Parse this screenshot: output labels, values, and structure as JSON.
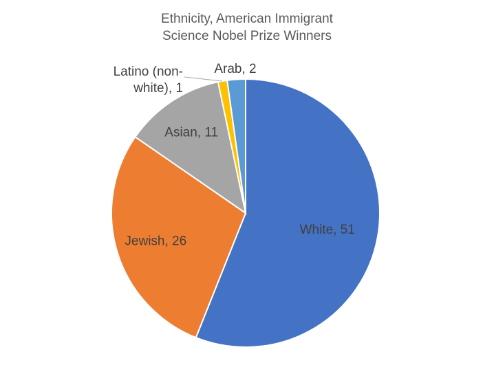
{
  "chart_data": {
    "type": "pie",
    "title": [
      "Ethnicity, American Immigrant",
      "Science Nobel Prize Winners"
    ],
    "slices": [
      {
        "label": "White, 51",
        "category": "White",
        "value": 51,
        "color": "#4472C4"
      },
      {
        "label": "Jewish, 26",
        "category": "Jewish",
        "value": 26,
        "color": "#ED7D31"
      },
      {
        "label": "Asian, 11",
        "category": "Asian",
        "value": 11,
        "color": "#A5A5A5"
      },
      {
        "label": [
          "Latino (non-",
          "white), 1"
        ],
        "category": "Latino (non-white)",
        "value": 1,
        "color": "#FFC000"
      },
      {
        "label": "Arab, 2",
        "category": "Arab",
        "value": 2,
        "color": "#5B9BD5"
      }
    ],
    "legend": "none",
    "data_labels": "category and value"
  }
}
